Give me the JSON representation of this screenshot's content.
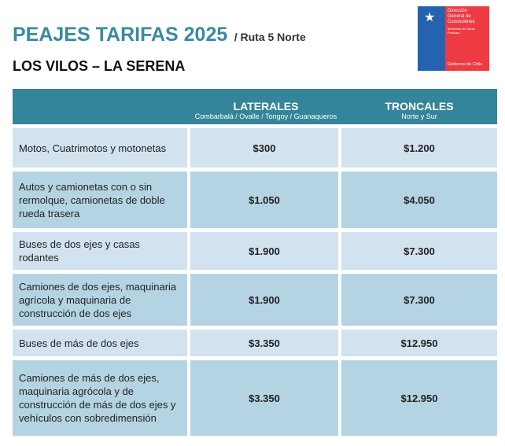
{
  "title": "PEAJES TARIFAS 2025",
  "subtitle": "/ Ruta 5 Norte",
  "route": "LOS VILOS – LA SERENA",
  "logo": {
    "line1": "Dirección",
    "line2": "General de",
    "line3": "Concesiones",
    "ministry": "Ministerio de Obras Públicas",
    "gov": "Gobierno de Chile"
  },
  "table": {
    "headers": [
      {
        "title": "LATERALES",
        "sub": "Combarbalá / Ovalle / Tongoy / Guanaqueros"
      },
      {
        "title": "TRONCALES",
        "sub": "Norte y Sur"
      }
    ],
    "rows": [
      {
        "vehicle": "Motos, Cuatrimotos y motonetas",
        "laterales": "$300",
        "troncales": "$1.200"
      },
      {
        "vehicle": "Autos y camionetas con o sin rermolque, camionetas de doble rueda trasera",
        "laterales": "$1.050",
        "troncales": "$4.050"
      },
      {
        "vehicle": "Buses de dos ejes y casas rodantes",
        "laterales": "$1.900",
        "troncales": "$7.300"
      },
      {
        "vehicle": "Camiones de dos ejes, maquinaria agrícola y maquinaria de construcción de dos ejes",
        "laterales": "$1.900",
        "troncales": "$7.300"
      },
      {
        "vehicle": "Buses de más de dos ejes",
        "laterales": "$3.350",
        "troncales": "$12.950"
      },
      {
        "vehicle": "Camiones de más de dos ejes, maquinaria agrócola y de construcción de más de dos ejes y vehículos con sobredimensión",
        "laterales": "$3.350",
        "troncales": "$12.950"
      }
    ]
  }
}
